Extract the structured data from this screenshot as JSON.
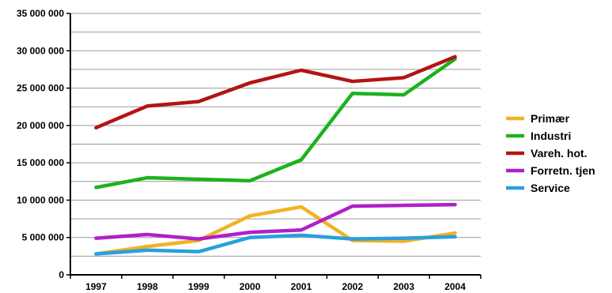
{
  "chart_data": {
    "type": "line",
    "title": "",
    "xlabel": "",
    "ylabel": "",
    "x": [
      "1997",
      "1998",
      "1999",
      "2000",
      "2001",
      "2002",
      "2003",
      "2004"
    ],
    "ylim": [
      0,
      35000000
    ],
    "yticks": [
      0,
      5000000,
      10000000,
      15000000,
      20000000,
      25000000,
      30000000,
      35000000
    ],
    "ytick_labels": [
      "0",
      "5 000 000",
      "10 000 000",
      "15 000 000",
      "20 000 000",
      "25 000 000",
      "30 000 000",
      "35 000 000"
    ],
    "grid": "horizontal",
    "legend_position": "right",
    "series": [
      {
        "name": "Primær",
        "color": "#f0b323",
        "values": [
          2800000,
          3800000,
          4600000,
          7900000,
          9100000,
          4600000,
          4500000,
          5600000
        ]
      },
      {
        "name": "Industri",
        "color": "#1cb21c",
        "values": [
          11700000,
          13000000,
          12800000,
          12600000,
          15400000,
          24300000,
          24100000,
          28900000
        ]
      },
      {
        "name": "Vareh. hot.",
        "color": "#b31414",
        "values": [
          19700000,
          22600000,
          23200000,
          25700000,
          27400000,
          25900000,
          26400000,
          29200000
        ]
      },
      {
        "name": "Forretn. tjen",
        "color": "#b01fcc",
        "values": [
          4900000,
          5400000,
          4800000,
          5700000,
          6000000,
          9200000,
          9300000,
          9400000
        ]
      },
      {
        "name": "Service",
        "color": "#2a9fe0",
        "values": [
          2800000,
          3300000,
          3100000,
          5000000,
          5300000,
          4800000,
          4900000,
          5100000
        ]
      }
    ]
  }
}
